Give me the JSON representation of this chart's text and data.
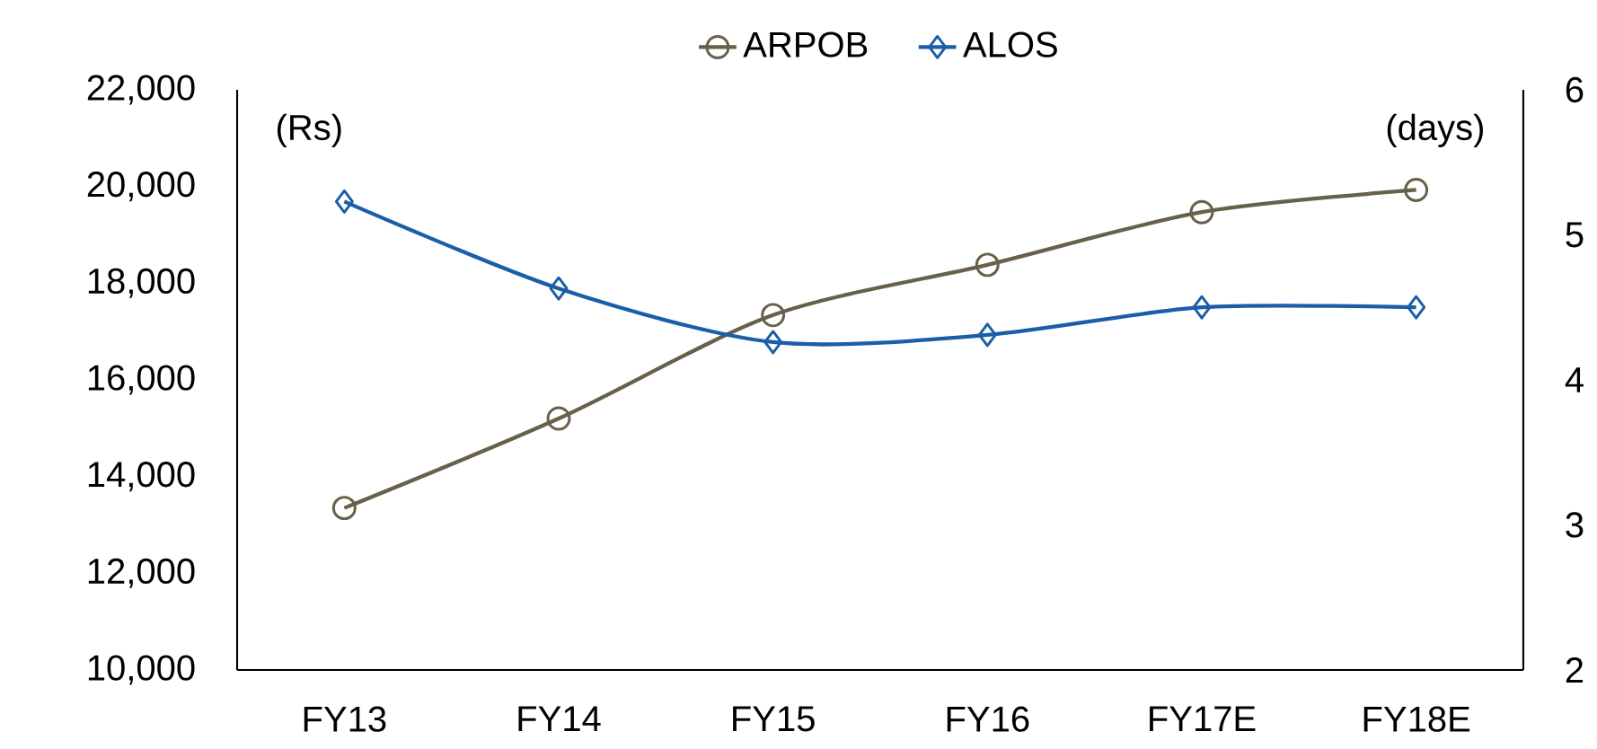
{
  "chart_data": {
    "type": "line",
    "categories": [
      "FY13",
      "FY14",
      "FY15",
      "FY16",
      "FY17E",
      "FY18E"
    ],
    "ylabel": "(Rs)",
    "y2label": "(days)",
    "ylim": [
      10000,
      22000
    ],
    "yticks": [
      {
        "value": 10000,
        "label": "10,000"
      },
      {
        "value": 12000,
        "label": "12,000"
      },
      {
        "value": 14000,
        "label": "14,000"
      },
      {
        "value": 16000,
        "label": "16,000"
      },
      {
        "value": 18000,
        "label": "18,000"
      },
      {
        "value": 20000,
        "label": "20,000"
      },
      {
        "value": 22000,
        "label": "22,000"
      }
    ],
    "y2lim": [
      2,
      6
    ],
    "y2ticks": [
      2,
      3,
      4,
      5,
      6
    ],
    "legend": "top",
    "series": [
      {
        "name": "ARPOB",
        "color": "#676149",
        "marker": "circle",
        "values": [
          13350,
          15200,
          17340,
          18380,
          19470,
          19930
        ]
      },
      {
        "name": "ALOS",
        "color": "#1a5ea8",
        "marker": "diamond",
        "axis": "y2",
        "values": [
          5.23,
          4.63,
          4.26,
          4.31,
          4.5,
          4.5
        ]
      }
    ]
  }
}
